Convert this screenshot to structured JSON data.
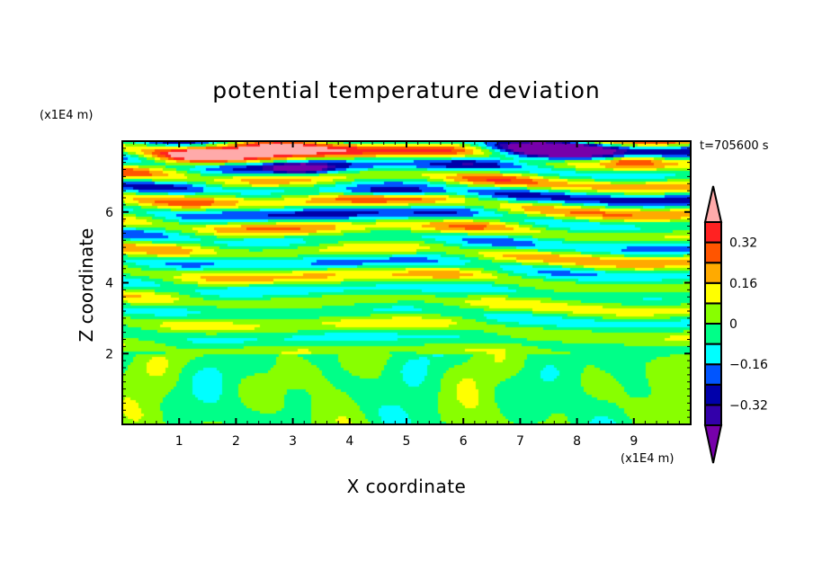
{
  "chart_data": {
    "type": "heatmap",
    "subtype": "filled-contour",
    "title": "potential temperature deviation",
    "xlabel": "X coordinate",
    "ylabel": "Z coordinate",
    "x_unit": "(x1E4 m)",
    "y_unit": "(x1E4 m)",
    "xlim": [
      0,
      10
    ],
    "ylim": [
      0,
      8
    ],
    "xticks": [
      1,
      2,
      3,
      4,
      5,
      6,
      7,
      8,
      9
    ],
    "yticks": [
      2,
      4,
      6
    ],
    "annotation": "t=705600 s",
    "colorbar": {
      "levels": [
        -0.4,
        -0.32,
        -0.24,
        -0.16,
        -0.08,
        0,
        0.08,
        0.16,
        0.24,
        0.32,
        0.4
      ],
      "tick_labels": [
        "0.32",
        "0.16",
        "0",
        "−0.16",
        "−0.32"
      ],
      "tick_values": [
        0.32,
        0.16,
        0,
        -0.16,
        -0.32
      ],
      "colors": [
        "#3300aa",
        "#0000aa",
        "#0055ff",
        "#00ffff",
        "#00ff88",
        "#88ff00",
        "#ffff00",
        "#ffaa00",
        "#ff5500",
        "#ff2222"
      ],
      "extend_low_color": "#7700aa",
      "extend_high_color": "#ffaaaa"
    }
  }
}
